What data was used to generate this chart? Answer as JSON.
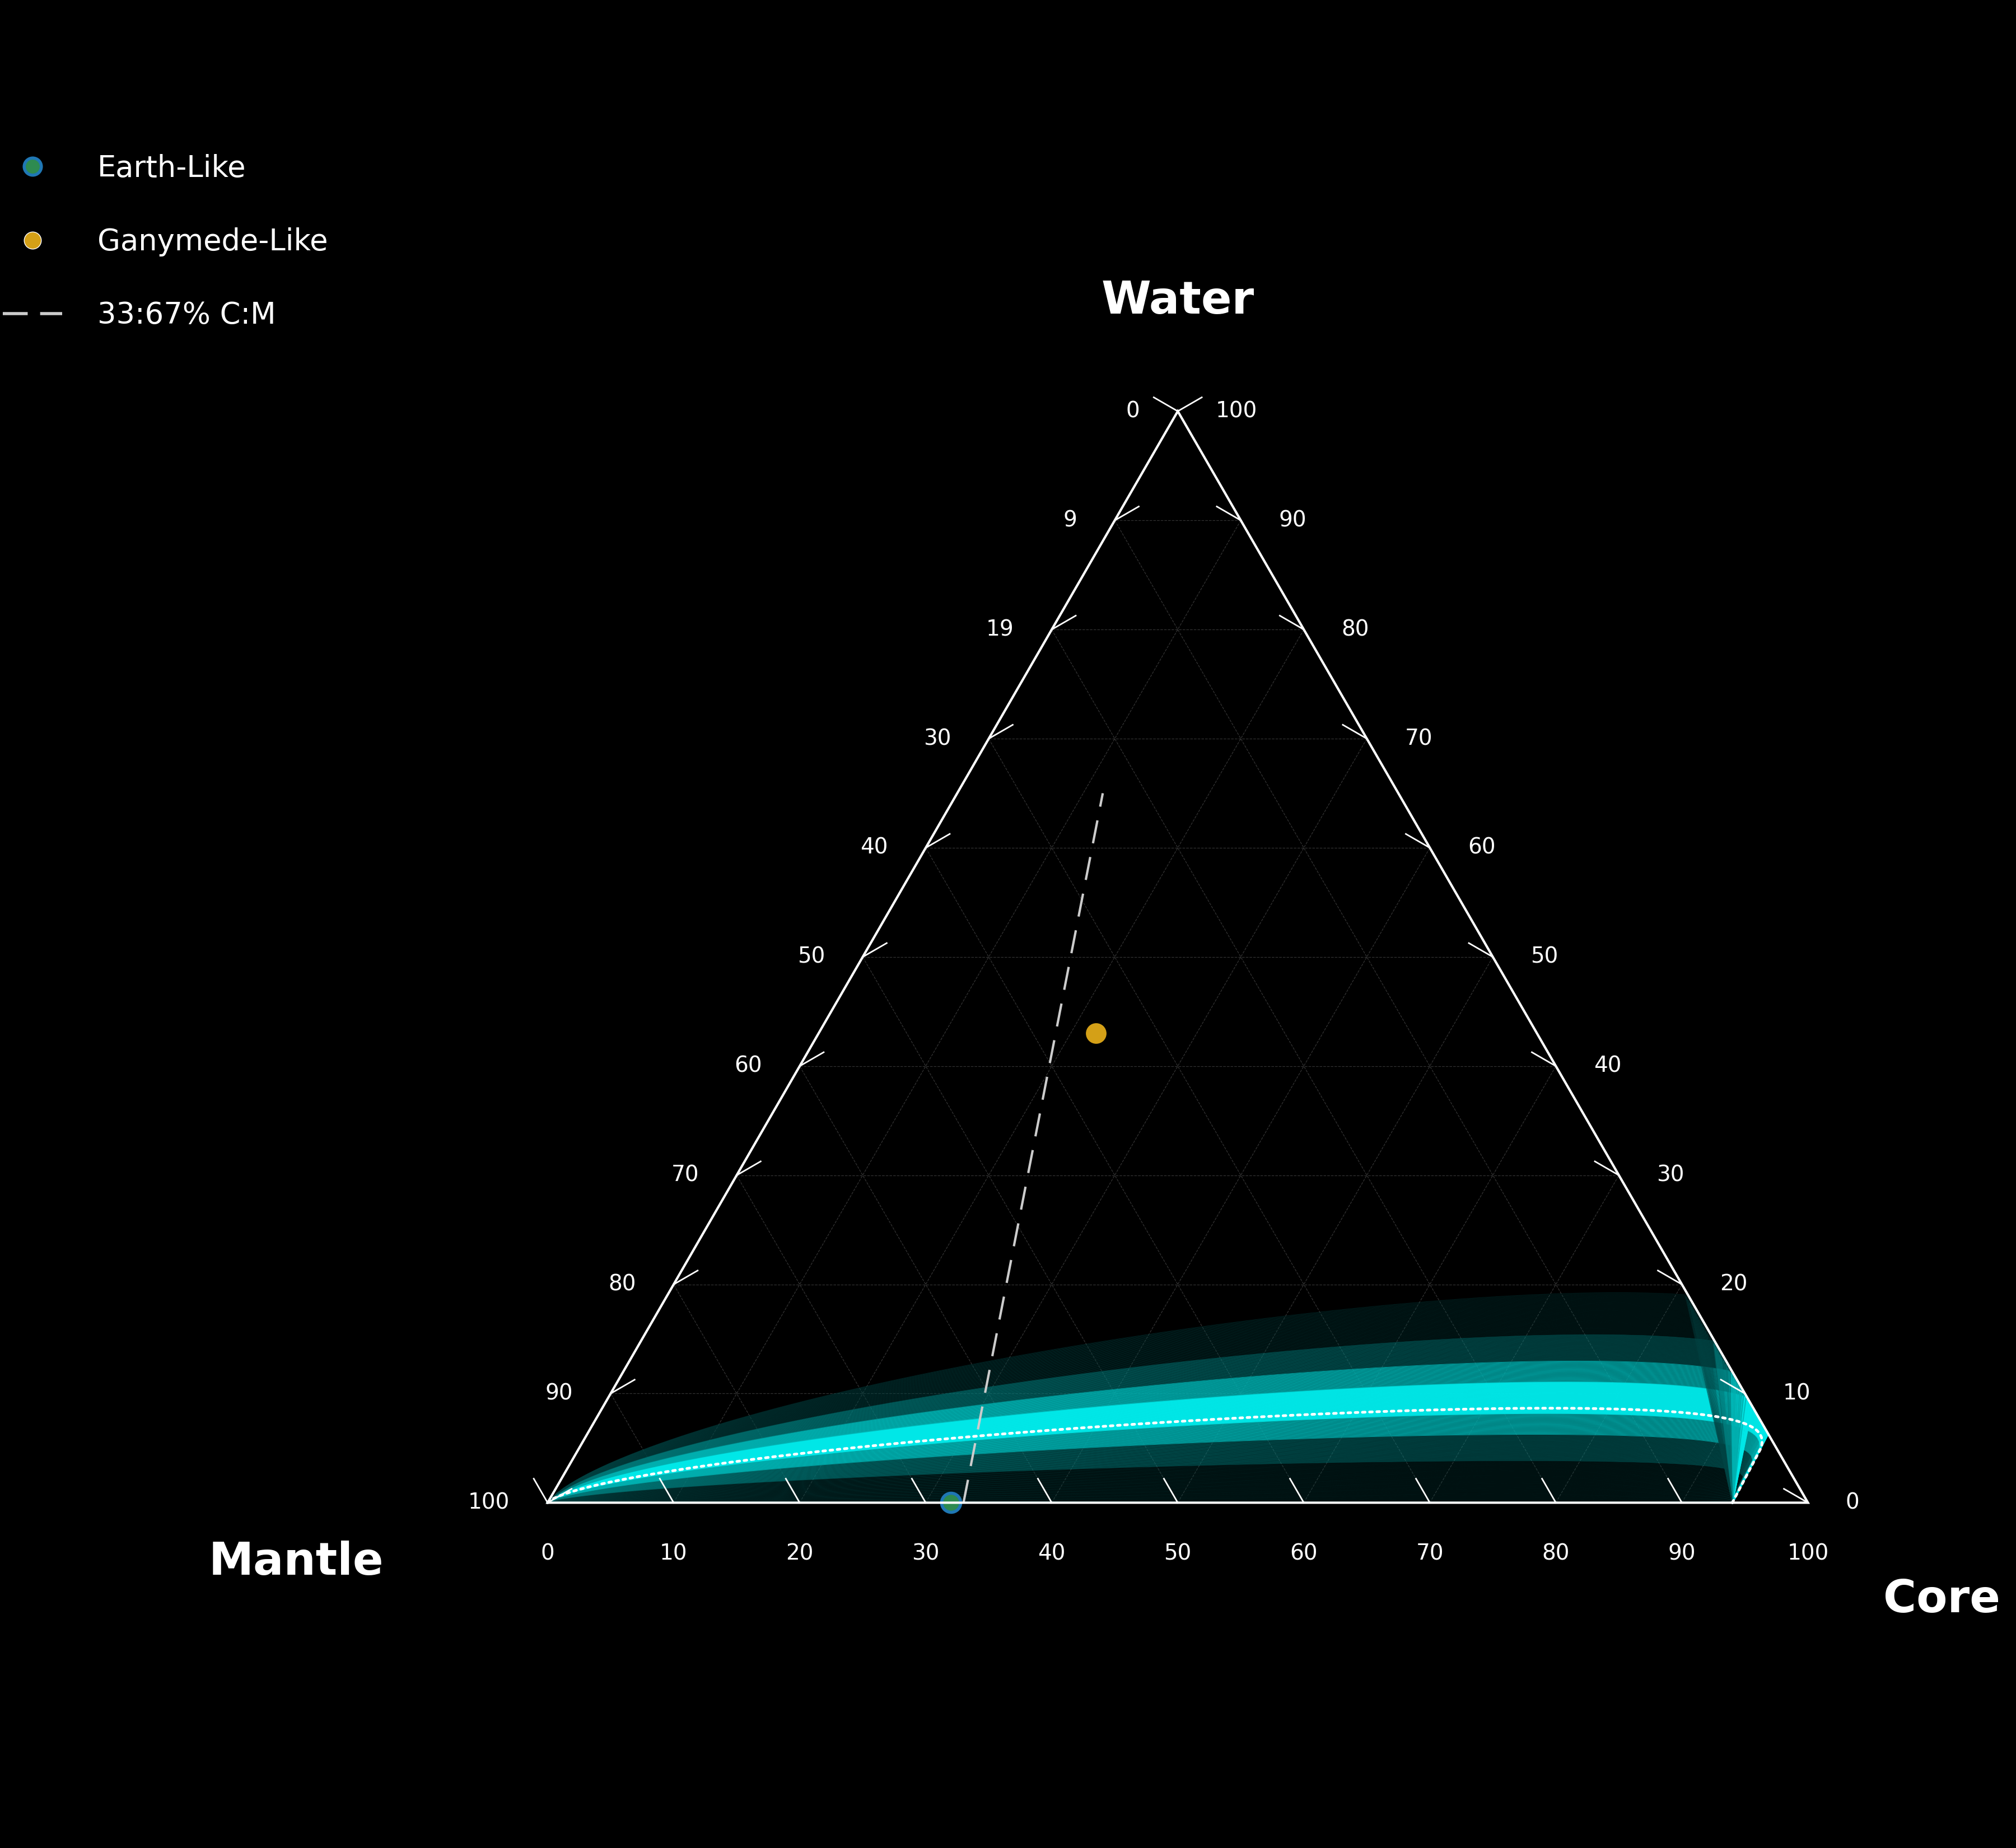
{
  "background_color": "#000000",
  "triangle_color": "#ffffff",
  "grid_color": "#ffffff",
  "grid_alpha": 0.2,
  "tick_label_color": "#ffffff",
  "axis_label_color": "#ffffff",
  "title_water": "Water",
  "title_mantle": "Mantle",
  "title_core": "Core",
  "earth_like": {
    "core": 32,
    "mantle": 68,
    "water": 0,
    "color": "#2e8b50",
    "edgecolor": "#1f77b4"
  },
  "ganymede_like": {
    "core": 22,
    "mantle": 35,
    "water": 43,
    "color": "#d4a017"
  },
  "cm_ratio": 0.33,
  "dashed_line_color": "#cccccc",
  "font_size_labels": 58,
  "font_size_ticks": 28,
  "font_size_legend": 38
}
